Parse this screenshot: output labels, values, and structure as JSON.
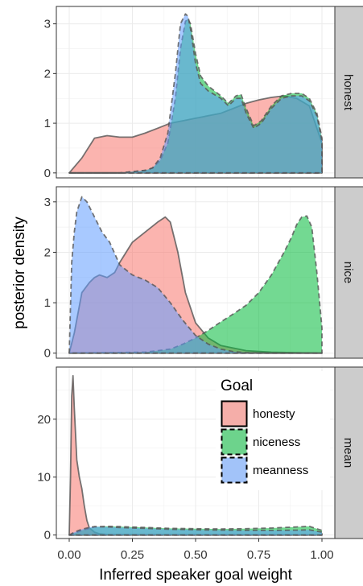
{
  "chart_data": {
    "type": "area",
    "xlabel": "Inferred speaker goal weight",
    "ylabel": "posterior density",
    "x_ticks": [
      "0.00",
      "0.25",
      "0.50",
      "0.75",
      "1.00"
    ],
    "xlim": [
      0,
      1
    ],
    "legend": {
      "title": "Goal",
      "placement": "inside-top-right-of-bottom-panel",
      "entries": [
        {
          "key": "honesty",
          "label": "honesty",
          "fill": "#F8766D",
          "dash": "solid"
        },
        {
          "key": "niceness",
          "label": "niceness",
          "fill": "#00BA38",
          "dash": "dashed"
        },
        {
          "key": "meanness",
          "label": "meanness",
          "fill": "#619CFF",
          "dash": "dashed"
        }
      ]
    },
    "panels": [
      {
        "label": "honest",
        "ylim": [
          -0.1,
          3.35
        ],
        "y_ticks": [
          0,
          1,
          2,
          3
        ],
        "series": [
          {
            "name": "honesty",
            "x": [
              0,
              0.05,
              0.1,
              0.15,
              0.2,
              0.25,
              0.3,
              0.35,
              0.4,
              0.45,
              0.5,
              0.55,
              0.6,
              0.65,
              0.7,
              0.75,
              0.8,
              0.85,
              0.9,
              0.95,
              1
            ],
            "y": [
              0,
              0.3,
              0.7,
              0.75,
              0.72,
              0.72,
              0.8,
              0.9,
              1.0,
              1.05,
              1.1,
              1.15,
              1.2,
              1.3,
              1.4,
              1.47,
              1.52,
              1.55,
              1.5,
              1.35,
              0.6
            ]
          },
          {
            "name": "niceness",
            "x": [
              0,
              0.2,
              0.3,
              0.33,
              0.36,
              0.39,
              0.42,
              0.44,
              0.46,
              0.47,
              0.48,
              0.5,
              0.52,
              0.55,
              0.6,
              0.63,
              0.66,
              0.68,
              0.7,
              0.73,
              0.76,
              0.8,
              0.84,
              0.88,
              0.92,
              0.95,
              0.98,
              1
            ],
            "y": [
              0,
              0,
              0.05,
              0.1,
              0.25,
              0.6,
              1.5,
              2.5,
              3.05,
              3.1,
              3.0,
              2.4,
              1.95,
              1.75,
              1.55,
              1.4,
              1.55,
              1.58,
              1.3,
              0.95,
              1.05,
              1.35,
              1.55,
              1.6,
              1.6,
              1.5,
              1.2,
              0.7
            ]
          },
          {
            "name": "meanness",
            "x": [
              0,
              0.2,
              0.3,
              0.33,
              0.36,
              0.39,
              0.42,
              0.44,
              0.46,
              0.47,
              0.48,
              0.5,
              0.52,
              0.55,
              0.6,
              0.63,
              0.66,
              0.68,
              0.7,
              0.73,
              0.76,
              0.8,
              0.84,
              0.88,
              0.92,
              0.95,
              0.98,
              1
            ],
            "y": [
              0,
              0,
              0.05,
              0.1,
              0.3,
              0.8,
              2.0,
              3.0,
              3.2,
              3.15,
              2.9,
              2.2,
              1.8,
              1.65,
              1.5,
              1.35,
              1.5,
              1.5,
              1.2,
              0.9,
              1.0,
              1.3,
              1.5,
              1.55,
              1.55,
              1.45,
              1.15,
              0.65
            ]
          }
        ]
      },
      {
        "label": "nice",
        "ylim": [
          -0.1,
          3.3
        ],
        "y_ticks": [
          0,
          1,
          2,
          3
        ],
        "series": [
          {
            "name": "honesty",
            "x": [
              0,
              0.02,
              0.05,
              0.08,
              0.1,
              0.12,
              0.15,
              0.18,
              0.2,
              0.25,
              0.3,
              0.35,
              0.38,
              0.4,
              0.43,
              0.46,
              0.5,
              0.55,
              0.6,
              0.7,
              0.8,
              1
            ],
            "y": [
              0,
              0.4,
              1.2,
              1.4,
              1.5,
              1.55,
              1.5,
              1.6,
              1.8,
              2.2,
              2.4,
              2.6,
              2.7,
              2.6,
              2.0,
              1.2,
              0.6,
              0.3,
              0.15,
              0.05,
              0.02,
              0
            ]
          },
          {
            "name": "niceness",
            "x": [
              0,
              0.3,
              0.4,
              0.45,
              0.5,
              0.55,
              0.6,
              0.65,
              0.7,
              0.75,
              0.8,
              0.85,
              0.88,
              0.9,
              0.92,
              0.94,
              0.96,
              0.98,
              1
            ],
            "y": [
              0,
              0.02,
              0.08,
              0.18,
              0.3,
              0.45,
              0.62,
              0.78,
              0.95,
              1.2,
              1.55,
              2.0,
              2.3,
              2.55,
              2.7,
              2.72,
              2.5,
              1.6,
              0.5
            ]
          },
          {
            "name": "meanness",
            "x": [
              0,
              0.01,
              0.02,
              0.03,
              0.05,
              0.07,
              0.1,
              0.13,
              0.16,
              0.2,
              0.25,
              0.3,
              0.35,
              0.4,
              0.45,
              0.5,
              0.55,
              0.6,
              0.65,
              0.7,
              0.8,
              1
            ],
            "y": [
              0,
              1.8,
              2.4,
              2.8,
              3.1,
              3.0,
              2.7,
              2.4,
              2.2,
              1.75,
              1.55,
              1.45,
              1.3,
              1.0,
              0.65,
              0.35,
              0.18,
              0.08,
              0.03,
              0.01,
              0,
              0
            ]
          }
        ]
      },
      {
        "label": "mean",
        "ylim": [
          -0.6,
          29
        ],
        "y_ticks": [
          0,
          10,
          20
        ],
        "series": [
          {
            "name": "honesty",
            "x": [
              0,
              0.005,
              0.01,
              0.015,
              0.02,
              0.03,
              0.04,
              0.05,
              0.06,
              0.07,
              0.08,
              0.1,
              0.12,
              0.15,
              0.3,
              0.6,
              1
            ],
            "y": [
              0,
              10,
              24,
              27.5,
              22,
              13,
              10,
              8,
              5,
              2.5,
              1.2,
              0.5,
              0.2,
              0.1,
              0.05,
              0.02,
              0
            ]
          },
          {
            "name": "niceness",
            "x": [
              0,
              0.05,
              0.1,
              0.15,
              0.2,
              0.3,
              0.4,
              0.5,
              0.6,
              0.7,
              0.8,
              0.9,
              0.95,
              1
            ],
            "y": [
              0,
              0.8,
              1.4,
              1.5,
              1.45,
              1.3,
              1.15,
              1.1,
              1.05,
              1.1,
              1.2,
              1.4,
              1.5,
              0.8
            ]
          },
          {
            "name": "meanness",
            "x": [
              0,
              0.02,
              0.05,
              0.08,
              0.1,
              0.15,
              0.2,
              0.3,
              0.4,
              0.5,
              0.6,
              0.7,
              0.8,
              0.9,
              0.95,
              1
            ],
            "y": [
              0,
              0.5,
              1.0,
              1.3,
              1.45,
              1.4,
              1.3,
              1.15,
              1.0,
              0.9,
              0.85,
              0.8,
              0.8,
              0.85,
              0.9,
              0.5
            ]
          }
        ]
      }
    ]
  }
}
